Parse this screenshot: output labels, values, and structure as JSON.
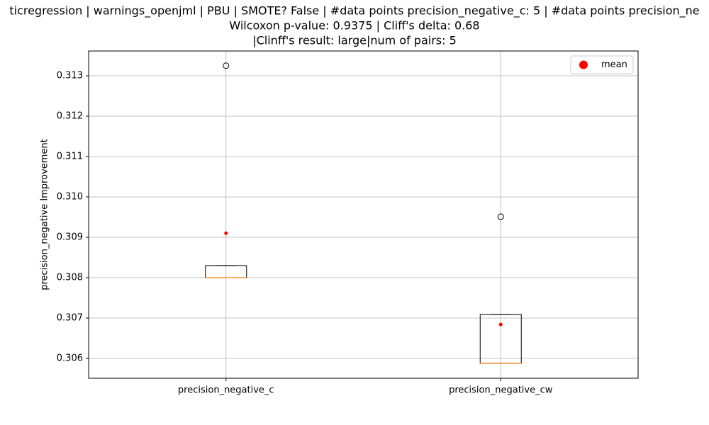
{
  "chart_data": {
    "type": "box",
    "title": [
      "ticregression | warnings_openjml | PBU | SMOTE? False | #data points precision_negative_c: 5 | #data points precision_ne",
      "Wilcoxon p-value: 0.9375 | Cliff's delta: 0.68",
      "|Clinff's result: large|num of pairs: 5"
    ],
    "y_label": "precision_negative Improvement",
    "categories": [
      "precision_negative_c",
      "precision_negative_cw"
    ],
    "boxes": [
      {
        "whisker_low": 0.308,
        "q1": 0.308,
        "median": 0.308,
        "q3": 0.3083,
        "whisker_high": 0.3083,
        "outliers": [
          0.31325
        ],
        "mean": 0.3091
      },
      {
        "whisker_low": 0.30588,
        "q1": 0.30588,
        "median": 0.30588,
        "q3": 0.30709,
        "whisker_high": 0.30709,
        "outliers": [
          0.30951
        ],
        "mean": 0.30684
      }
    ],
    "ylim": [
      0.305509,
      0.313614
    ],
    "yticks": [
      0.306,
      0.307,
      0.308,
      0.309,
      {
        "value": 0.31,
        "label": "0.310"
      },
      0.311,
      0.312,
      0.313
    ],
    "grid": true,
    "legend": {
      "label": "mean",
      "color": "#ff0000",
      "position": "upper right"
    },
    "box_color": "#000000",
    "median_color": "#ff7f0e"
  }
}
